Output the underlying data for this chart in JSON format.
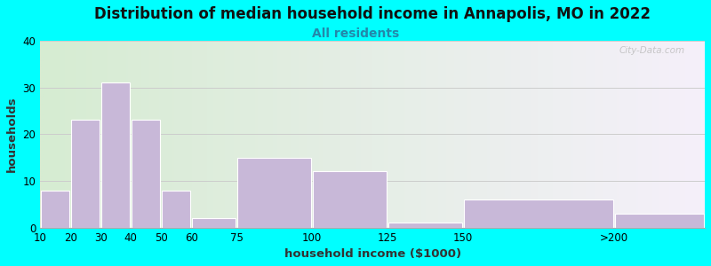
{
  "title": "Distribution of median household income in Annapolis, MO in 2022",
  "subtitle": "All residents",
  "xlabel": "household income ($1000)",
  "ylabel": "households",
  "title_fontsize": 12,
  "subtitle_fontsize": 10,
  "xlabel_fontsize": 9.5,
  "ylabel_fontsize": 9.5,
  "background_outer": "#00FFFF",
  "background_inner_left": "#d6ecd2",
  "background_inner_right": "#f5f0fa",
  "bar_color": "#c8b8d8",
  "bar_edgecolor": "#ffffff",
  "tick_positions": [
    10,
    20,
    30,
    40,
    50,
    60,
    75,
    100,
    125,
    150,
    200
  ],
  "tick_labels": [
    "10",
    "20",
    "30",
    "40",
    "50",
    "60",
    "75",
    "100",
    "125",
    "150",
    ">200"
  ],
  "bar_lefts": [
    10,
    20,
    30,
    40,
    50,
    60,
    75,
    100,
    125,
    150,
    200
  ],
  "bar_widths": [
    10,
    10,
    10,
    10,
    10,
    15,
    25,
    25,
    25,
    50,
    30
  ],
  "values": [
    8,
    23,
    31,
    23,
    8,
    2,
    15,
    12,
    1,
    6,
    3
  ],
  "ylim": [
    0,
    40
  ],
  "yticks": [
    0,
    10,
    20,
    30,
    40
  ],
  "xlim": [
    10,
    230
  ],
  "grid_color": "#cccccc",
  "watermark": "City-Data.com"
}
